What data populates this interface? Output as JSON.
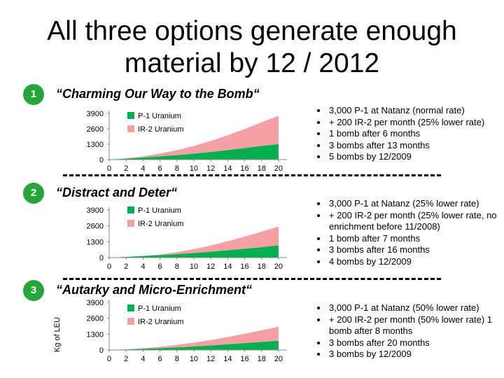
{
  "title_line1": "All three options generate enough",
  "title_line2": "material by 12 / 2012",
  "colors": {
    "p1": "#00b050",
    "ir2": "#f4a0a4",
    "badge": "#26a63a"
  },
  "options": [
    {
      "number": "1",
      "title": "“Charming Our Way to the Bomb“",
      "bullets": [
        "3,000 P-1 at Natanz (normal rate)",
        "+ 200 IR-2 per month (25% lower rate)",
        "1 bomb after 6 months",
        "3 bombs after 13 months",
        "5 bombs by 12/2009"
      ]
    },
    {
      "number": "2",
      "title": "“Distract and Deter“",
      "bullets": [
        "3,000 P-1 at Natanz (25% lower rate)",
        "+ 200 IR-2 per month  (25% lower rate, no enrichment before 11/2008)",
        "1 bomb after 7 months",
        "3 bombs after 16 months",
        "4 bombs by 12/2009"
      ]
    },
    {
      "number": "3",
      "title": "“Autarky and Micro-Enrichment“",
      "bullets": [
        "3,000 P-1 at Natanz (50% lower rate)",
        "+ 200 IR-2 per month (50% lower rate) 1 bomb after 8 months",
        "3 bombs after 20 months",
        "3 bombs by 12/2009"
      ]
    }
  ],
  "chart_data": [
    {
      "type": "area",
      "stacked": true,
      "x": [
        0,
        2,
        4,
        6,
        8,
        10,
        12,
        14,
        16,
        18,
        20
      ],
      "x_ticks": [
        "0",
        "2",
        "4",
        "6",
        "8",
        "10",
        "12",
        "14",
        "16",
        "18",
        "20"
      ],
      "y_ticks": [
        "0",
        "1300",
        "2600",
        "3900"
      ],
      "ylim": [
        0,
        3900
      ],
      "xlim": [
        0,
        21
      ],
      "xlabel": "",
      "ylabel": "",
      "legend_position": "top-left",
      "series": [
        {
          "name": "P-1 Uranium",
          "values": [
            0,
            80,
            170,
            270,
            380,
            500,
            640,
            800,
            970,
            1150,
            1300
          ]
        },
        {
          "name": "IR-2 Uranium",
          "values": [
            0,
            30,
            110,
            240,
            420,
            650,
            930,
            1250,
            1620,
            2000,
            2400
          ]
        }
      ]
    },
    {
      "type": "area",
      "stacked": true,
      "x": [
        0,
        2,
        4,
        6,
        8,
        10,
        12,
        14,
        16,
        18,
        20
      ],
      "x_ticks": [
        "0",
        "2",
        "4",
        "6",
        "8",
        "10",
        "12",
        "14",
        "16",
        "18",
        "20"
      ],
      "y_ticks": [
        "0",
        "1300",
        "2600",
        "3900"
      ],
      "ylim": [
        0,
        3900
      ],
      "xlim": [
        0,
        21
      ],
      "xlabel": "",
      "ylabel": "",
      "legend_position": "top-left",
      "series": [
        {
          "name": "P-1 Uranium",
          "values": [
            0,
            60,
            125,
            200,
            280,
            375,
            480,
            600,
            720,
            850,
            1000
          ]
        },
        {
          "name": "IR-2 Uranium",
          "values": [
            0,
            0,
            10,
            60,
            170,
            320,
            510,
            740,
            1000,
            1270,
            1550
          ]
        }
      ]
    },
    {
      "type": "area",
      "stacked": true,
      "x": [
        0,
        2,
        4,
        6,
        8,
        10,
        12,
        14,
        16,
        18,
        20
      ],
      "x_ticks": [
        "0",
        "2",
        "4",
        "6",
        "8",
        "10",
        "12",
        "14",
        "16",
        "18",
        "20"
      ],
      "y_ticks": [
        "0",
        "1300",
        "2600",
        "3900"
      ],
      "ylim": [
        0,
        3900
      ],
      "xlim": [
        0,
        21
      ],
      "xlabel": "",
      "ylabel": "Kg of LEU",
      "legend_position": "top-left",
      "series": [
        {
          "name": "P-1 Uranium",
          "values": [
            0,
            40,
            90,
            145,
            210,
            285,
            370,
            460,
            560,
            660,
            760
          ]
        },
        {
          "name": "IR-2 Uranium",
          "values": [
            0,
            15,
            55,
            120,
            210,
            320,
            450,
            600,
            770,
            950,
            1150
          ]
        }
      ]
    }
  ]
}
